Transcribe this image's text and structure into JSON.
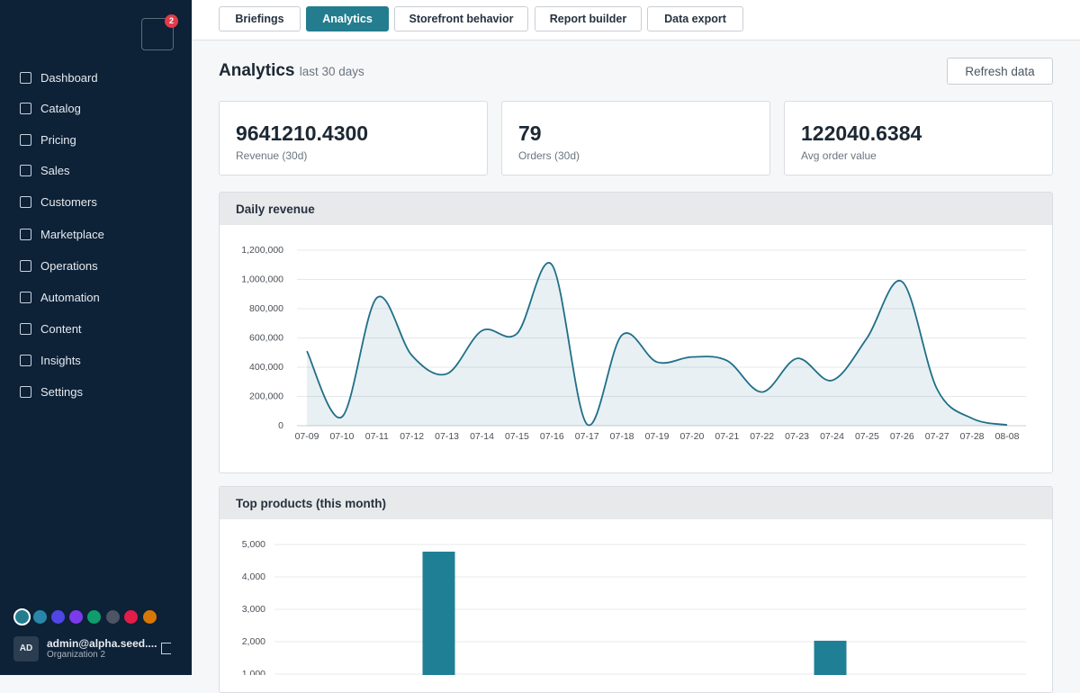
{
  "sidebar": {
    "notification_count": 2,
    "nav": [
      "Dashboard",
      "Catalog",
      "Pricing",
      "Sales",
      "Customers",
      "Marketplace",
      "Operations",
      "Automation",
      "Content",
      "Insights",
      "Settings"
    ],
    "user": {
      "initials": "AD",
      "email": "admin@alpha.seed....",
      "org": "Organization 2"
    }
  },
  "tabs": [
    "Briefings",
    "Analytics",
    "Storefront behavior",
    "Report builder",
    "Data export"
  ],
  "header": {
    "title": "Analytics",
    "subtitle": "last 30 days",
    "refresh": "Refresh data"
  },
  "kpis": [
    {
      "value": "9641210.4300",
      "label": "Revenue (30d)"
    },
    {
      "value": "79",
      "label": "Orders (30d)"
    },
    {
      "value": "122040.6384",
      "label": "Avg order value"
    }
  ],
  "chart_data": [
    {
      "type": "line",
      "title": "Daily revenue",
      "color": "#1f6f87",
      "categories": [
        "07-09",
        "07-10",
        "07-11",
        "07-12",
        "07-13",
        "07-14",
        "07-15",
        "07-16",
        "07-17",
        "07-18",
        "07-19",
        "07-20",
        "07-21",
        "07-22",
        "07-23",
        "07-24",
        "07-25",
        "07-26",
        "07-27",
        "07-28",
        "08-08"
      ],
      "values": [
        510000,
        60000,
        875000,
        480000,
        355000,
        650000,
        630000,
        1100000,
        10000,
        620000,
        435000,
        470000,
        445000,
        230000,
        460000,
        310000,
        600000,
        985000,
        250000,
        50000,
        5000
      ],
      "ylim": [
        0,
        1200000
      ],
      "yticks": [
        0,
        {
          "value": 200000,
          "label": "200,000"
        },
        {
          "value": 400000,
          "label": "400,000"
        },
        {
          "value": 600000,
          "label": "600,000"
        },
        {
          "value": 800000,
          "label": "800,000"
        },
        {
          "value": 1000000,
          "label": "1,000,000"
        },
        {
          "value": 1200000,
          "label": "1,200,000"
        }
      ],
      "grid": true
    },
    {
      "type": "bar",
      "title": "Top products (this month)",
      "color": "#1f7f95",
      "categories": [
        null,
        null
      ],
      "values": [
        4780,
        2030
      ],
      "ylim": [
        0,
        5000
      ],
      "yticks": [
        {
          "value": 1000,
          "label": "1,000"
        },
        {
          "value": 2000,
          "label": "2,000"
        },
        {
          "value": 3000,
          "label": "3,000"
        },
        {
          "value": 4000,
          "label": "4,000"
        },
        {
          "value": 5000,
          "label": "5,000"
        }
      ],
      "grid": true
    }
  ]
}
